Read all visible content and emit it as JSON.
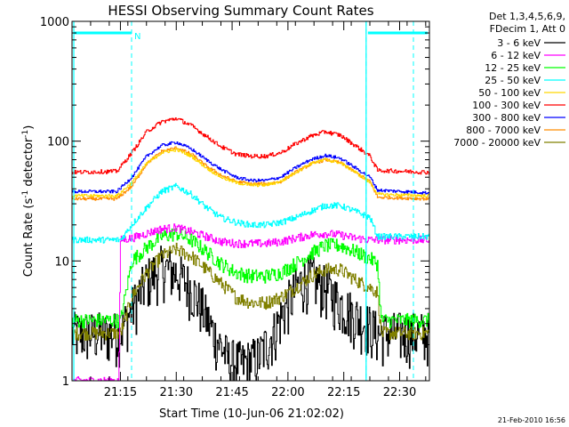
{
  "chart_data": {
    "type": "line",
    "title": "HESSI Observing Summary Count Rates",
    "xlabel": "Start Time (10-Jun-06 21:02:02)",
    "ylabel_main": "Count Rate (s",
    "ylabel_sup1": "-1",
    "ylabel_mid": " detector",
    "ylabel_sup2": "-1",
    "ylabel_end": ")",
    "ylog": true,
    "ylim": [
      1,
      1000
    ],
    "xlim": [
      0,
      96
    ],
    "x_unit": "minutes since 21:02:02",
    "xticks": [
      {
        "value": 13,
        "label": "21:15"
      },
      {
        "value": 28,
        "label": "21:30"
      },
      {
        "value": 43,
        "label": "21:45"
      },
      {
        "value": 58,
        "label": "22:00"
      },
      {
        "value": 73,
        "label": "22:15"
      },
      {
        "value": 88,
        "label": "22:30"
      }
    ],
    "yticks": [
      {
        "value": 1,
        "label": "1"
      },
      {
        "value": 10,
        "label": "10"
      },
      {
        "value": 100,
        "label": "100"
      },
      {
        "value": 1000,
        "label": "1000"
      }
    ],
    "legend_header": [
      "Det 1,3,4,5,6,9,",
      "FDecim 1, Att 0"
    ],
    "legend_position": "right",
    "annotations": {
      "night_flag": "N",
      "footer_date": "21-Feb-2010 16:56"
    },
    "markers": {
      "solid_lines_x": [
        0,
        79
      ],
      "dashed_lines_x": [
        16,
        79,
        96
      ],
      "flag_segments": [
        [
          0,
          16
        ],
        [
          79,
          96
        ]
      ],
      "flag_level": 800
    },
    "series": [
      {
        "name": "3 - 6 keV",
        "color": "#000000",
        "noise": 0.5,
        "x": [
          0,
          12,
          13,
          16,
          20,
          24,
          28,
          32,
          35,
          38,
          42,
          46,
          50,
          54,
          57,
          61,
          64,
          68,
          72,
          76,
          79,
          82,
          96
        ],
        "values": [
          2.5,
          2.5,
          2.6,
          4,
          7,
          9,
          8,
          6,
          4,
          2.5,
          1.5,
          1.4,
          1.6,
          2.5,
          4,
          6.5,
          7.5,
          6,
          4.5,
          3.5,
          3,
          2.5,
          2.5
        ]
      },
      {
        "name": "6 - 12 keV",
        "color": "#ff00ff",
        "noise": 0.08,
        "x": [
          0,
          12,
          12.5,
          13,
          16,
          20,
          24,
          28,
          32,
          36,
          40,
          44,
          48,
          52,
          56,
          60,
          64,
          68,
          72,
          76,
          80,
          82,
          84,
          96
        ],
        "values": [
          1,
          1,
          1,
          15,
          15.5,
          17,
          18.5,
          19,
          17.5,
          16,
          14.5,
          14,
          14,
          14,
          14.5,
          15.5,
          16.5,
          17,
          16.5,
          15.5,
          15,
          15,
          15,
          15
        ]
      },
      {
        "name": "12 - 25 keV",
        "color": "#00ff00",
        "noise": 0.14,
        "x": [
          0,
          12,
          13,
          16,
          20,
          24,
          28,
          32,
          36,
          40,
          44,
          48,
          52,
          56,
          60,
          64,
          68,
          72,
          76,
          80,
          82,
          83,
          96
        ],
        "values": [
          3.2,
          3.2,
          3.2,
          10,
          13,
          16,
          17,
          15,
          12,
          9.5,
          8,
          7.5,
          7.5,
          8,
          9.5,
          11.5,
          13.5,
          13.5,
          12,
          10.5,
          9.5,
          3.2,
          3.2
        ]
      },
      {
        "name": "25 - 50 keV",
        "color": "#00ffff",
        "noise": 0.06,
        "x": [
          0,
          12,
          13,
          16,
          20,
          24,
          28,
          32,
          36,
          40,
          44,
          48,
          52,
          56,
          60,
          64,
          68,
          72,
          76,
          80,
          82,
          96
        ],
        "values": [
          15,
          15,
          15,
          20,
          28,
          38,
          42,
          36,
          28,
          23,
          21,
          20,
          20,
          21,
          23,
          26,
          29,
          29,
          26,
          23,
          16,
          16
        ]
      },
      {
        "name": "50 - 100 keV",
        "color": "#ffd700",
        "noise": 0.03,
        "x": [
          0,
          12,
          16,
          20,
          24,
          28,
          32,
          36,
          40,
          44,
          48,
          52,
          56,
          60,
          64,
          68,
          72,
          76,
          80,
          82,
          96
        ],
        "values": [
          35,
          35,
          45,
          65,
          80,
          85,
          75,
          60,
          50,
          45,
          43,
          43,
          46,
          55,
          65,
          70,
          66,
          55,
          45,
          36,
          35
        ]
      },
      {
        "name": "100 - 300 keV",
        "color": "#ff0000",
        "noise": 0.04,
        "x": [
          0,
          12,
          16,
          20,
          24,
          28,
          32,
          36,
          40,
          44,
          48,
          52,
          56,
          60,
          64,
          68,
          72,
          76,
          80,
          82,
          96
        ],
        "values": [
          55,
          56,
          80,
          120,
          145,
          155,
          135,
          110,
          90,
          78,
          75,
          75,
          80,
          95,
          110,
          120,
          112,
          92,
          75,
          57,
          55
        ]
      },
      {
        "name": "300 - 800 keV",
        "color": "#0000ff",
        "noise": 0.03,
        "x": [
          0,
          12,
          16,
          20,
          24,
          28,
          32,
          36,
          40,
          44,
          48,
          52,
          56,
          60,
          64,
          68,
          72,
          76,
          80,
          82,
          96
        ],
        "values": [
          38,
          38,
          50,
          75,
          92,
          98,
          86,
          70,
          58,
          50,
          47,
          47,
          50,
          60,
          70,
          76,
          72,
          60,
          50,
          39,
          37
        ]
      },
      {
        "name": "800 - 7000 keV",
        "color": "#ff8c00",
        "noise": 0.03,
        "x": [
          0,
          12,
          16,
          20,
          24,
          28,
          32,
          36,
          40,
          44,
          48,
          52,
          56,
          60,
          64,
          68,
          72,
          76,
          80,
          82,
          96
        ],
        "values": [
          33,
          33,
          42,
          65,
          82,
          88,
          78,
          62,
          52,
          46,
          44,
          44,
          46,
          55,
          64,
          70,
          66,
          55,
          46,
          34,
          33
        ]
      },
      {
        "name": "7000 - 20000 keV",
        "color": "#808000",
        "noise": 0.13,
        "x": [
          0,
          12,
          13,
          16,
          20,
          24,
          28,
          32,
          36,
          40,
          44,
          48,
          52,
          56,
          60,
          64,
          68,
          72,
          76,
          80,
          82,
          83,
          96
        ],
        "values": [
          2.5,
          2.5,
          2.5,
          5,
          8,
          11,
          12.5,
          11,
          8.5,
          6.5,
          5,
          4.5,
          4.5,
          5,
          6,
          7.5,
          8.5,
          8.5,
          7,
          6,
          5.5,
          2.5,
          2.5
        ]
      }
    ]
  }
}
